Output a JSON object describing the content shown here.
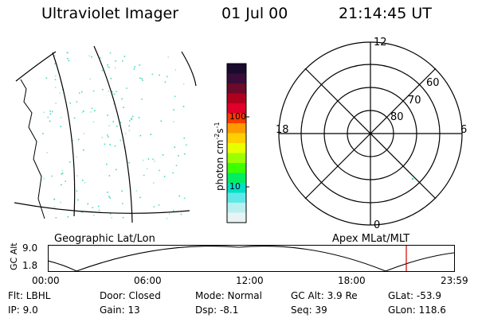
{
  "header": {
    "title": "Ultraviolet Imager",
    "date": "01 Jul 00",
    "time": "21:14:45 UT"
  },
  "colorbar": {
    "label": "photon cm⁻²s⁻¹",
    "label_parts": [
      "photon cm",
      "-2",
      "s",
      "-1"
    ],
    "ticks": [
      "100",
      "10"
    ],
    "colors": [
      "#1a0a2e",
      "#3a0c3a",
      "#6b0a2a",
      "#b00020",
      "#e0002a",
      "#ff3a00",
      "#ff9a00",
      "#ffd000",
      "#e8ff00",
      "#9cff00",
      "#3cff00",
      "#00ee60",
      "#00e0c8",
      "#60e8e8",
      "#b8f0f0",
      "#e8f4f4"
    ]
  },
  "geo_panel": {
    "label": "Geographic Lat/Lon"
  },
  "apex_panel": {
    "label": "Apex MLat/MLT",
    "mlt_labels": {
      "top": "12",
      "left": "18",
      "right": "6",
      "bottom": "0"
    },
    "lat_labels": [
      "60",
      "70",
      "80"
    ]
  },
  "timeline": {
    "ylabel": "GC Alt",
    "yticks": [
      "9.0",
      "1.8"
    ],
    "xticks": [
      "00:00",
      "06:00",
      "12:00",
      "18:00",
      "23:59"
    ],
    "marker_color": "#d00000"
  },
  "status": {
    "flt": "Flt:  LBHL",
    "ip": "IP:  9.0",
    "door": "Door: Closed",
    "gain": "Gain: 13",
    "mode": "Mode:  Normal",
    "dsp": "Dsp:    -8.1",
    "gc_alt": "GC Alt: 3.9 Re",
    "seq": "Seq:  39",
    "glat": "GLat:  -53.9",
    "glon": "GLon:  118.6"
  }
}
